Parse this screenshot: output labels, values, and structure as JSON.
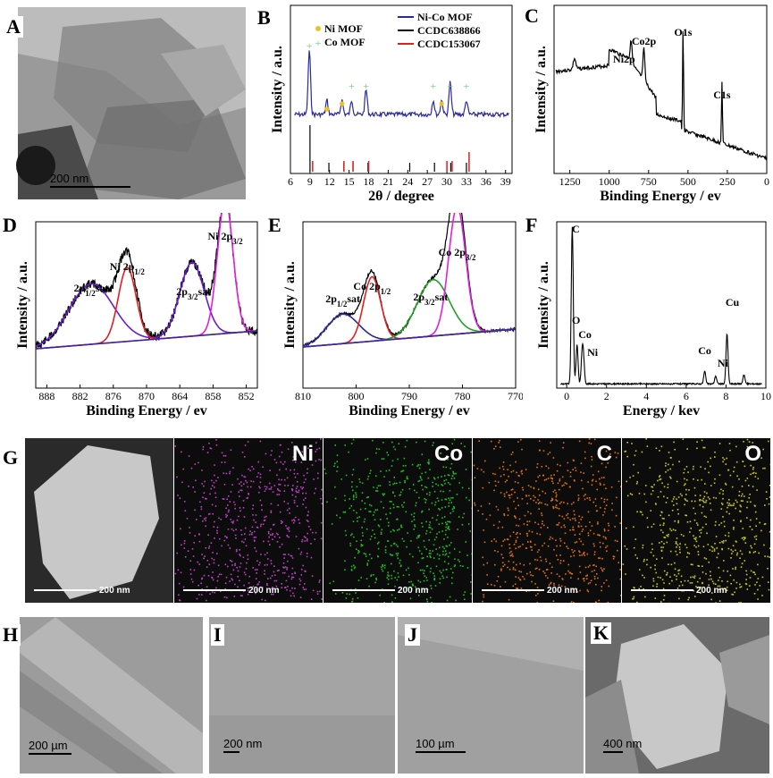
{
  "panels": {
    "A": {
      "label": "A",
      "scale": "200 nm"
    },
    "B": {
      "label": "B"
    },
    "C": {
      "label": "C"
    },
    "D": {
      "label": "D"
    },
    "E": {
      "label": "E"
    },
    "F": {
      "label": "F"
    },
    "G": {
      "label": "G",
      "scale": "200 nm",
      "channels": [
        {
          "name": "",
          "scale": "200 nm",
          "color": "#b0b0b0"
        },
        {
          "name": "Ni",
          "scale": "200 nm",
          "color": "#c040c8"
        },
        {
          "name": "Co",
          "scale": "200 nm",
          "color": "#20c020"
        },
        {
          "name": "C",
          "scale": "200 nm",
          "color": "#e07010"
        },
        {
          "name": "O",
          "scale": "200 nm",
          "color": "#c8c820"
        }
      ]
    },
    "H": {
      "label": "H",
      "scale": "200 µm"
    },
    "I": {
      "label": "I",
      "scale": "200 nm"
    },
    "J": {
      "label": "J",
      "scale": "100 µm"
    },
    "K": {
      "label": "K",
      "scale": "400 nm"
    }
  },
  "chart_data": [
    {
      "panel": "B",
      "type": "line",
      "xlabel": "2θ / degree",
      "ylabel": "Intensity / a.u.",
      "xlim": [
        6,
        40
      ],
      "xticks": [
        6,
        9,
        12,
        15,
        18,
        21,
        24,
        27,
        30,
        33,
        36,
        39
      ],
      "legend": [
        "Ni MOF",
        "Co MOF",
        "Ni-Co MOF",
        "CCDC638866",
        "CCDC153067"
      ],
      "legend_colors": [
        "#f0c020",
        "#6ed06e",
        "#2a2a9a",
        "#000000",
        "#e02020"
      ],
      "peaks_x": [
        8.9,
        11.6,
        13.9,
        15.4,
        17.6,
        27.9,
        29.2,
        30.5,
        33.0
      ],
      "ccdc638866_x": [
        9.0,
        11.9,
        14.2,
        15.6,
        17.9,
        24.3,
        28.1,
        30.6,
        33.0
      ],
      "ccdc153067_x": [
        9.2,
        14.0,
        15.4,
        17.8,
        29.8,
        30.6,
        33.2
      ]
    },
    {
      "panel": "C",
      "type": "line",
      "xlabel": "Binding Energy / ev",
      "ylabel": "Intensity / a.u.",
      "xlim": [
        1350,
        0
      ],
      "xticks": [
        1250,
        1000,
        750,
        500,
        250,
        0
      ],
      "annotations": [
        {
          "text": "Ni2p",
          "x": 860
        },
        {
          "text": "Co2p",
          "x": 780
        },
        {
          "text": "O1s",
          "x": 531
        },
        {
          "text": "C1s",
          "x": 284
        }
      ]
    },
    {
      "panel": "D",
      "type": "line",
      "xlabel": "Binding Energy / ev",
      "ylabel": "Intensity / a.u.",
      "xlim": [
        890,
        850
      ],
      "xticks": [
        888,
        882,
        876,
        870,
        864,
        858,
        852
      ],
      "annotations": [
        {
          "text": "2p1/2sat",
          "x": 880
        },
        {
          "text": "Ni 2p1/2",
          "x": 873.5
        },
        {
          "text": "2p3/2sat",
          "x": 861.5
        },
        {
          "text": "Ni 2p3/2",
          "x": 855.8
        }
      ],
      "series": [
        {
          "name": "",
          "color": "#000000",
          "peaks": [
            {
              "c": 880,
              "h": 0.45,
              "w": 4
            },
            {
              "c": 873.5,
              "h": 0.55,
              "w": 1.6
            },
            {
              "c": 861.8,
              "h": 0.55,
              "w": 2.2
            },
            {
              "c": 855.8,
              "h": 1.0,
              "w": 1.4
            }
          ]
        },
        {
          "name": "",
          "color": "#6a1bd0",
          "peaks": [
            {
              "c": 880,
              "h": 0.45,
              "w": 4
            },
            {
              "c": 861.8,
              "h": 0.55,
              "w": 2.2
            }
          ]
        },
        {
          "name": "",
          "color": "#e02020",
          "peaks": [
            {
              "c": 873.5,
              "h": 0.55,
              "w": 1.6
            }
          ]
        },
        {
          "name": "",
          "color": "#e020e0",
          "peaks": [
            {
              "c": 855.8,
              "h": 1.0,
              "w": 1.4
            }
          ]
        }
      ]
    },
    {
      "panel": "E",
      "type": "line",
      "xlabel": "Binding Energy / ev",
      "ylabel": "Intensity / a.u.",
      "xlim": [
        810,
        770
      ],
      "xticks": [
        810,
        800,
        790,
        780,
        770
      ],
      "annotations": [
        {
          "text": "2p1/2sat",
          "x": 802.5
        },
        {
          "text": "Co 2p1/2",
          "x": 797
        },
        {
          "text": "2p3/2sat",
          "x": 786
        },
        {
          "text": "Co 2p3/2",
          "x": 781
        }
      ],
      "series": [
        {
          "name": "",
          "color": "#000000",
          "peaks": [
            {
              "c": 802.5,
              "h": 0.22,
              "w": 3
            },
            {
              "c": 797,
              "h": 0.48,
              "w": 1.6
            },
            {
              "c": 785.5,
              "h": 0.42,
              "w": 3
            },
            {
              "c": 781,
              "h": 0.95,
              "w": 1.6
            }
          ]
        },
        {
          "name": "",
          "color": "#2a2a9a",
          "peaks": [
            {
              "c": 802.5,
              "h": 0.22,
              "w": 3
            }
          ]
        },
        {
          "name": "",
          "color": "#e02020",
          "peaks": [
            {
              "c": 797,
              "h": 0.48,
              "w": 1.6
            }
          ]
        },
        {
          "name": "",
          "color": "#20a020",
          "peaks": [
            {
              "c": 785.5,
              "h": 0.42,
              "w": 3
            }
          ]
        },
        {
          "name": "",
          "color": "#e020e0",
          "peaks": [
            {
              "c": 781,
              "h": 0.95,
              "w": 1.6
            }
          ]
        }
      ]
    },
    {
      "panel": "F",
      "type": "line",
      "xlabel": "Energy / kev",
      "ylabel": "Intensity / a.u.",
      "xlim": [
        -0.5,
        10
      ],
      "xticks": [
        0,
        2,
        4,
        6,
        8,
        10
      ],
      "annotations": [
        {
          "text": "C",
          "x": 0.28
        },
        {
          "text": "O",
          "x": 0.52
        },
        {
          "text": "Co",
          "x": 0.78
        },
        {
          "text": "Ni",
          "x": 0.85
        },
        {
          "text": "Co",
          "x": 6.93
        },
        {
          "text": "Ni",
          "x": 7.48
        },
        {
          "text": "Cu",
          "x": 8.05
        }
      ],
      "peaks": [
        {
          "c": 0.28,
          "h": 1.0
        },
        {
          "c": 0.52,
          "h": 0.25
        },
        {
          "c": 0.78,
          "h": 0.2
        },
        {
          "c": 0.85,
          "h": 0.12
        },
        {
          "c": 6.93,
          "h": 0.08
        },
        {
          "c": 7.48,
          "h": 0.05
        },
        {
          "c": 8.05,
          "h": 0.32
        },
        {
          "c": 8.9,
          "h": 0.06
        }
      ]
    }
  ]
}
